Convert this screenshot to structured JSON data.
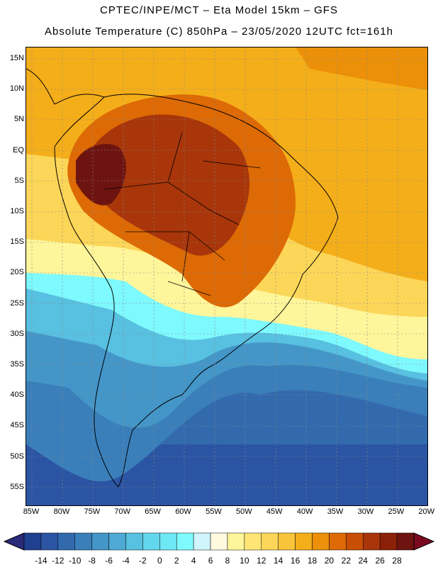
{
  "header": {
    "line1": "CPTEC/INPE/MCT –  Eta Model 15km – GFS",
    "line2": "Absolute Temperature (C) 850hPa – 23/05/2020 12UTC fct=161h"
  },
  "map": {
    "lat_labels": [
      "15N",
      "10N",
      "5N",
      "EQ",
      "5S",
      "10S",
      "15S",
      "20S",
      "25S",
      "30S",
      "35S",
      "40S",
      "45S",
      "50S",
      "55S"
    ],
    "lon_labels": [
      "85W",
      "80W",
      "75W",
      "70W",
      "65W",
      "60W",
      "55W",
      "50W",
      "45W",
      "40W",
      "35W",
      "30W",
      "25W",
      "20W"
    ]
  },
  "colorbar": {
    "labels": [
      "-14",
      "-12",
      "-10",
      "-8",
      "-6",
      "-4",
      "-2",
      "0",
      "2",
      "4",
      "6",
      "8",
      "10",
      "12",
      "14",
      "16",
      "18",
      "20",
      "22",
      "24",
      "26",
      "28"
    ],
    "colors": [
      "#1f3f8f",
      "#2b54a3",
      "#336aae",
      "#3a7fba",
      "#4596c8",
      "#4eaad4",
      "#58c0e0",
      "#62d6ec",
      "#6ee8f5",
      "#7ef9fd",
      "#cff4fb",
      "#fff9e0",
      "#fff59a",
      "#ffe576",
      "#fcd658",
      "#f8c439",
      "#f4ae1a",
      "#eb9008",
      "#dd6a05",
      "#c74e05",
      "#a8360a",
      "#8a2108",
      "#6e1410"
    ]
  }
}
